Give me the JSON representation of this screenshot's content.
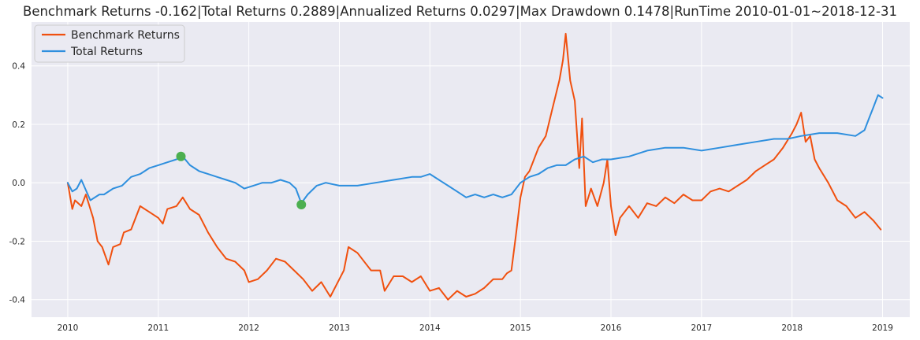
{
  "chart_data": {
    "type": "line",
    "title": "Benchmark Returns -0.162|Total Returns 0.2889|Annualized Returns 0.0297|Max Drawdown 0.1478|RunTime 2010-01-01~2018-12-31",
    "xlabel": "",
    "ylabel": "",
    "xlim": [
      2009.6,
      2019.3
    ],
    "ylim": [
      -0.46,
      0.55
    ],
    "grid": true,
    "legend_position": "top-left",
    "x_ticks": [
      2010,
      2011,
      2012,
      2013,
      2014,
      2015,
      2016,
      2017,
      2018,
      2019
    ],
    "x_tick_labels": [
      "2010",
      "2011",
      "2012",
      "2013",
      "2014",
      "2015",
      "2016",
      "2017",
      "2018",
      "2019"
    ],
    "y_ticks": [
      -0.4,
      -0.2,
      0.0,
      0.2,
      0.4
    ],
    "y_tick_labels": [
      "-0.4",
      "-0.2",
      "0.0",
      "0.2",
      "0.4"
    ],
    "series": [
      {
        "name": "Benchmark Returns",
        "color": "#f0500f",
        "x": [
          2010.0,
          2010.05,
          2010.08,
          2010.15,
          2010.2,
          2010.28,
          2010.33,
          2010.38,
          2010.45,
          2010.5,
          2010.58,
          2010.62,
          2010.7,
          2010.8,
          2010.9,
          2011.0,
          2011.05,
          2011.1,
          2011.2,
          2011.27,
          2011.35,
          2011.45,
          2011.55,
          2011.65,
          2011.75,
          2011.85,
          2011.95,
          2012.0,
          2012.1,
          2012.2,
          2012.3,
          2012.4,
          2012.5,
          2012.6,
          2012.7,
          2012.8,
          2012.9,
          2012.95,
          2013.05,
          2013.1,
          2013.2,
          2013.3,
          2013.35,
          2013.45,
          2013.5,
          2013.6,
          2013.7,
          2013.8,
          2013.9,
          2014.0,
          2014.1,
          2014.2,
          2014.3,
          2014.4,
          2014.5,
          2014.6,
          2014.7,
          2014.8,
          2014.85,
          2014.9,
          2014.95,
          2015.0,
          2015.05,
          2015.1,
          2015.2,
          2015.28,
          2015.35,
          2015.43,
          2015.47,
          2015.5,
          2015.55,
          2015.6,
          2015.65,
          2015.68,
          2015.72,
          2015.78,
          2015.85,
          2015.92,
          2015.96,
          2016.0,
          2016.05,
          2016.1,
          2016.2,
          2016.3,
          2016.4,
          2016.5,
          2016.6,
          2016.7,
          2016.8,
          2016.9,
          2017.0,
          2017.1,
          2017.2,
          2017.3,
          2017.4,
          2017.5,
          2017.6,
          2017.7,
          2017.8,
          2017.9,
          2018.0,
          2018.05,
          2018.1,
          2018.15,
          2018.2,
          2018.25,
          2018.3,
          2018.4,
          2018.5,
          2018.6,
          2018.7,
          2018.8,
          2018.9,
          2018.98
        ],
        "values": [
          0.0,
          -0.09,
          -0.06,
          -0.08,
          -0.04,
          -0.12,
          -0.2,
          -0.22,
          -0.28,
          -0.22,
          -0.21,
          -0.17,
          -0.16,
          -0.08,
          -0.1,
          -0.12,
          -0.14,
          -0.09,
          -0.08,
          -0.05,
          -0.09,
          -0.11,
          -0.17,
          -0.22,
          -0.26,
          -0.27,
          -0.3,
          -0.34,
          -0.33,
          -0.3,
          -0.26,
          -0.27,
          -0.3,
          -0.33,
          -0.37,
          -0.34,
          -0.39,
          -0.36,
          -0.3,
          -0.22,
          -0.24,
          -0.28,
          -0.3,
          -0.3,
          -0.37,
          -0.32,
          -0.32,
          -0.34,
          -0.32,
          -0.37,
          -0.36,
          -0.4,
          -0.37,
          -0.39,
          -0.38,
          -0.36,
          -0.33,
          -0.33,
          -0.31,
          -0.3,
          -0.18,
          -0.05,
          0.02,
          0.04,
          0.12,
          0.16,
          0.25,
          0.35,
          0.42,
          0.51,
          0.35,
          0.28,
          0.05,
          0.22,
          -0.08,
          -0.02,
          -0.08,
          0.0,
          0.08,
          -0.08,
          -0.18,
          -0.12,
          -0.08,
          -0.12,
          -0.07,
          -0.08,
          -0.05,
          -0.07,
          -0.04,
          -0.06,
          -0.06,
          -0.03,
          -0.02,
          -0.03,
          -0.01,
          0.01,
          0.04,
          0.06,
          0.08,
          0.12,
          0.17,
          0.2,
          0.24,
          0.14,
          0.16,
          0.08,
          0.05,
          0.0,
          -0.06,
          -0.08,
          -0.12,
          -0.1,
          -0.13,
          -0.16
        ]
      },
      {
        "name": "Total Returns",
        "color": "#2e8fde",
        "x": [
          2010.0,
          2010.05,
          2010.1,
          2010.15,
          2010.25,
          2010.35,
          2010.4,
          2010.5,
          2010.6,
          2010.7,
          2010.8,
          2010.9,
          2011.0,
          2011.1,
          2011.2,
          2011.27,
          2011.35,
          2011.45,
          2011.55,
          2011.65,
          2011.75,
          2011.85,
          2011.95,
          2012.05,
          2012.15,
          2012.25,
          2012.35,
          2012.45,
          2012.52,
          2012.58,
          2012.65,
          2012.75,
          2012.85,
          2013.0,
          2013.2,
          2013.4,
          2013.6,
          2013.8,
          2013.9,
          2014.0,
          2014.15,
          2014.2,
          2014.3,
          2014.4,
          2014.5,
          2014.6,
          2014.7,
          2014.8,
          2014.9,
          2015.0,
          2015.1,
          2015.2,
          2015.3,
          2015.4,
          2015.5,
          2015.6,
          2015.7,
          2015.8,
          2015.9,
          2016.0,
          2016.2,
          2016.4,
          2016.6,
          2016.8,
          2017.0,
          2017.2,
          2017.4,
          2017.6,
          2017.8,
          2017.95,
          2018.1,
          2018.3,
          2018.5,
          2018.7,
          2018.8,
          2018.85,
          2018.9,
          2018.95,
          2019.0
        ],
        "values": [
          0.0,
          -0.03,
          -0.02,
          0.01,
          -0.06,
          -0.04,
          -0.04,
          -0.02,
          -0.01,
          0.02,
          0.03,
          0.05,
          0.06,
          0.07,
          0.08,
          0.09,
          0.06,
          0.04,
          0.03,
          0.02,
          0.01,
          0.0,
          -0.02,
          -0.01,
          0.0,
          0.0,
          0.01,
          0.0,
          -0.02,
          -0.07,
          -0.04,
          -0.01,
          0.0,
          -0.01,
          -0.01,
          0.0,
          0.01,
          0.02,
          0.02,
          0.03,
          0.0,
          -0.01,
          -0.03,
          -0.05,
          -0.04,
          -0.05,
          -0.04,
          -0.05,
          -0.04,
          0.0,
          0.02,
          0.03,
          0.05,
          0.06,
          0.06,
          0.08,
          0.09,
          0.07,
          0.08,
          0.08,
          0.09,
          0.11,
          0.12,
          0.12,
          0.11,
          0.12,
          0.13,
          0.14,
          0.15,
          0.15,
          0.16,
          0.17,
          0.17,
          0.16,
          0.18,
          0.22,
          0.26,
          0.3,
          0.29
        ]
      }
    ],
    "annotations": [
      {
        "name": "max-drawdown-start",
        "x": 2011.25,
        "y": 0.09,
        "color": "#4caf50"
      },
      {
        "name": "max-drawdown-end",
        "x": 2012.58,
        "y": -0.075,
        "color": "#4caf50"
      }
    ]
  }
}
